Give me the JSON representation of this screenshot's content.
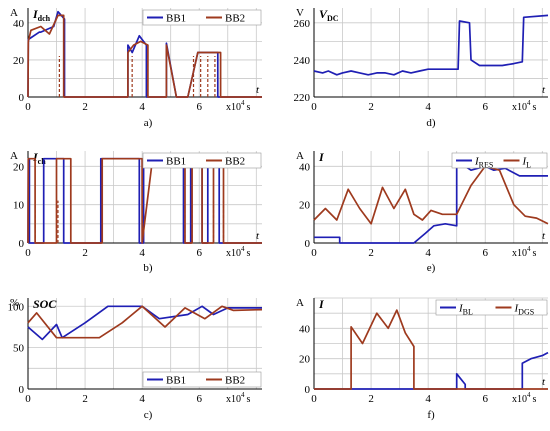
{
  "colors": {
    "blue": "#1f1fb4",
    "red": "#9e3a1e",
    "grid": "#c9c9c9"
  },
  "chart_data": [
    {
      "id": "a",
      "type": "line",
      "caption": "a)",
      "unit": "A",
      "symbol": "I",
      "subscript": "dch",
      "xlabel": "t",
      "x_exp_label": "x10",
      "x_exp_power": "4",
      "x_unit": "s",
      "xlim": [
        0,
        8.2
      ],
      "ylim": [
        0,
        48
      ],
      "xticks": [
        0,
        2,
        4,
        6
      ],
      "yticks": [
        0,
        20,
        40
      ],
      "legend_pos": "top-right",
      "series": [
        {
          "name": "BB1",
          "color": "blue",
          "x": [
            0,
            0.01,
            0.4,
            0.45,
            0.9,
            1.05,
            1.28,
            1.28,
            3.5,
            3.5,
            3.65,
            3.9,
            4.15,
            4.15,
            4.85,
            4.85,
            5.2,
            5.2,
            5.55,
            5.6,
            5.95,
            6.05,
            6.55,
            6.65,
            6.65,
            8.2
          ],
          "y": [
            0,
            31,
            35,
            35,
            38,
            46,
            42,
            0,
            0,
            28,
            24,
            33,
            28,
            0,
            0,
            29,
            0,
            0,
            0,
            0,
            24,
            24,
            24,
            24,
            0,
            0
          ]
        },
        {
          "name": "BB2",
          "color": "red",
          "x": [
            0,
            0.01,
            0.1,
            0.45,
            0.75,
            1.05,
            1.25,
            1.25,
            3.5,
            3.5,
            3.7,
            3.95,
            4.2,
            4.2,
            4.85,
            4.85,
            5.2,
            5.2,
            5.6,
            5.6,
            5.95,
            6.3,
            6.75,
            6.75,
            8.2
          ],
          "y": [
            0,
            30,
            36,
            38,
            34,
            44,
            44,
            0,
            0,
            24,
            28,
            30,
            28,
            0,
            0,
            28,
            0,
            0,
            0,
            0,
            24,
            24,
            24,
            0,
            0
          ]
        }
      ],
      "dashed_x": [
        1.1,
        3.65,
        4.2,
        5.8,
        6.05,
        6.3,
        6.55
      ]
    },
    {
      "id": "b",
      "type": "line",
      "caption": "b)",
      "unit": "A",
      "symbol": "I",
      "subscript": "ch",
      "xlabel": "t",
      "x_exp_label": "x10",
      "x_exp_power": "4",
      "x_unit": "s",
      "xlim": [
        0,
        8.2
      ],
      "ylim": [
        0,
        24
      ],
      "xticks": [
        0,
        2,
        4,
        6
      ],
      "yticks": [
        0,
        10,
        20
      ],
      "legend_pos": "top-right",
      "series": [
        {
          "name": "BB1",
          "color": "blue",
          "x": [
            0,
            0.01,
            0.05,
            0.05,
            0.55,
            0.55,
            1.25,
            1.25,
            2.55,
            2.55,
            3.9,
            3.9,
            4.05,
            4.05,
            5.45,
            5.45,
            5.7,
            5.7,
            6.1,
            6.1,
            6.3,
            6.3,
            6.7,
            6.7,
            7.05,
            7.05,
            8.2
          ],
          "y": [
            0,
            22,
            22,
            0,
            0,
            22,
            22,
            0,
            0,
            22,
            22,
            0,
            0,
            22,
            22,
            0,
            0,
            22,
            22,
            0,
            0,
            22,
            22,
            0,
            0,
            0,
            0
          ]
        },
        {
          "name": "BB2",
          "color": "red",
          "x": [
            0,
            0.01,
            0.25,
            0.25,
            1.0,
            1.0,
            1.5,
            1.5,
            2.6,
            2.6,
            4.0,
            4.0,
            4.35,
            4.45,
            5.5,
            5.5,
            5.75,
            5.75,
            6.1,
            6.1,
            6.5,
            6.5,
            6.85,
            6.85,
            8.2
          ],
          "y": [
            0,
            22,
            22,
            0,
            0,
            22,
            22,
            0,
            0,
            22,
            22,
            0,
            21,
            21,
            21,
            0,
            0,
            22,
            22,
            0,
            0,
            22,
            22,
            0,
            0
          ]
        }
      ],
      "dashed_x": [
        0.25,
        1.05,
        2.6,
        4.0,
        5.5,
        5.75,
        6.1,
        6.5,
        6.85
      ]
    },
    {
      "id": "c",
      "type": "line",
      "caption": "c)",
      "unit": "%",
      "symbol": "SOC",
      "subscript": "",
      "xlabel": "t",
      "x_exp_label": "x10",
      "x_exp_power": "4",
      "x_unit": "s",
      "xlim": [
        0,
        8.2
      ],
      "ylim": [
        0,
        110
      ],
      "xticks": [
        0,
        2,
        4,
        6
      ],
      "yticks": [
        0,
        50,
        100
      ],
      "legend_pos": "bottom-right",
      "series": [
        {
          "name": "BB1",
          "color": "blue",
          "x": [
            0,
            0.5,
            1.0,
            1.2,
            2.0,
            2.8,
            4.0,
            4.6,
            5.6,
            6.1,
            6.5,
            7.0,
            8.2
          ],
          "y": [
            75,
            60,
            78,
            62,
            80,
            100,
            100,
            85,
            90,
            100,
            90,
            98,
            98
          ]
        },
        {
          "name": "BB2",
          "color": "red",
          "x": [
            0,
            0.3,
            1.0,
            1.2,
            2.5,
            3.3,
            4.0,
            4.8,
            5.5,
            6.2,
            6.8,
            7.2,
            8.2
          ],
          "y": [
            80,
            92,
            62,
            62,
            62,
            80,
            100,
            75,
            98,
            85,
            100,
            95,
            96
          ]
        }
      ]
    },
    {
      "id": "d",
      "type": "line",
      "caption": "d)",
      "unit": "V",
      "symbol": "V",
      "subscript": "DC",
      "xlabel": "t",
      "x_exp_label": "x10",
      "x_exp_power": "4",
      "x_unit": "s",
      "xlim": [
        0,
        8.2
      ],
      "ylim": [
        220,
        268
      ],
      "xticks": [
        0,
        2,
        4,
        6
      ],
      "yticks": [
        220,
        240,
        260
      ],
      "series": [
        {
          "name": "",
          "color": "blue",
          "x": [
            0,
            0.3,
            0.5,
            0.8,
            1.0,
            1.3,
            1.6,
            1.9,
            2.2,
            2.5,
            2.8,
            3.1,
            3.4,
            3.7,
            4.0,
            4.5,
            5.05,
            5.1,
            5.45,
            5.5,
            5.8,
            6.2,
            6.6,
            7.0,
            7.3,
            7.35,
            8.2
          ],
          "y": [
            234,
            233,
            234,
            232,
            233,
            234,
            233,
            232,
            233,
            233,
            232,
            234,
            233,
            234,
            235,
            235,
            235,
            261,
            260,
            240,
            237,
            237,
            237,
            238,
            239,
            263,
            264
          ]
        }
      ]
    },
    {
      "id": "e",
      "type": "line",
      "caption": "e)",
      "unit": "A",
      "symbol": "I",
      "subscript": "",
      "xlabel": "t",
      "x_exp_label": "x10",
      "x_exp_power": "4",
      "x_unit": "s",
      "xlim": [
        0,
        8.2
      ],
      "ylim": [
        0,
        48
      ],
      "xticks": [
        0,
        2,
        4,
        6
      ],
      "yticks": [
        0,
        20,
        40
      ],
      "legend_pos": "top-right",
      "series": [
        {
          "name": "I_RES",
          "label_main": "I",
          "label_sub": "RES",
          "color": "blue",
          "x": [
            0,
            0.9,
            0.9,
            3.5,
            3.9,
            4.2,
            4.6,
            5.0,
            5.0,
            5.5,
            6.0,
            6.3,
            6.7,
            7.2,
            8.2
          ],
          "y": [
            3,
            3,
            0,
            0,
            5,
            9,
            10,
            9,
            43,
            38,
            40,
            38,
            39,
            35,
            35
          ]
        },
        {
          "name": "I_L",
          "label_main": "I",
          "label_sub": "L",
          "color": "red",
          "x": [
            0,
            0.4,
            0.8,
            1.2,
            1.6,
            2.0,
            2.4,
            2.8,
            3.2,
            3.5,
            3.8,
            4.1,
            4.5,
            5.0,
            5.5,
            6.0,
            6.5,
            7.0,
            7.4,
            7.8,
            8.2
          ],
          "y": [
            12,
            18,
            12,
            28,
            18,
            10,
            29,
            18,
            28,
            15,
            12,
            17,
            15,
            15,
            30,
            40,
            38,
            20,
            14,
            13,
            10
          ]
        }
      ]
    },
    {
      "id": "f",
      "type": "line",
      "caption": "f)",
      "unit": "A",
      "symbol": "I",
      "subscript": "",
      "xlabel": "t",
      "x_exp_label": "x10",
      "x_exp_power": "4",
      "x_unit": "s",
      "xlim": [
        0,
        8.2
      ],
      "ylim": [
        0,
        60
      ],
      "xticks": [
        0,
        2,
        4,
        6
      ],
      "yticks": [
        0,
        20,
        40
      ],
      "legend_pos": "top-right",
      "series": [
        {
          "name": "I_BL",
          "label_main": "I",
          "label_sub": "BL",
          "color": "blue",
          "x": [
            0,
            5.0,
            5.0,
            5.3,
            5.3,
            7.3,
            7.3,
            7.6,
            8.0,
            8.2
          ],
          "y": [
            0,
            0,
            10,
            3,
            0,
            0,
            17,
            20,
            22,
            24
          ]
        },
        {
          "name": "I_DGS",
          "label_main": "I",
          "label_sub": "DGS",
          "color": "red",
          "x": [
            0,
            1.3,
            1.3,
            1.7,
            2.2,
            2.6,
            2.9,
            3.2,
            3.5,
            3.5,
            8.2
          ],
          "y": [
            0,
            0,
            41,
            30,
            50,
            40,
            52,
            37,
            28,
            0,
            0
          ]
        }
      ]
    }
  ]
}
